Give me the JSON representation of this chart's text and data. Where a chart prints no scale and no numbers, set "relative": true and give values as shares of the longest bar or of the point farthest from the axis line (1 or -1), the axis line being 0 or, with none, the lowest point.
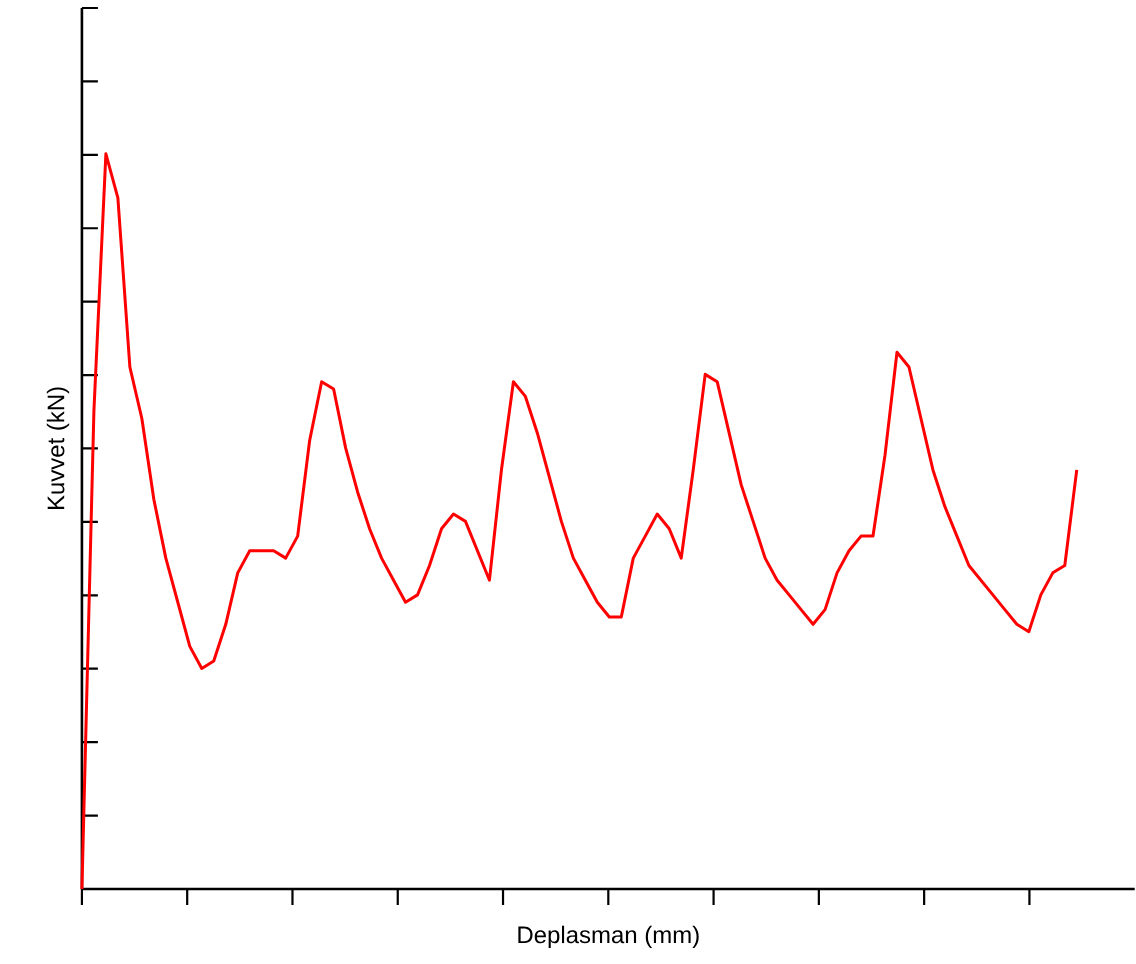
{
  "chart_data": {
    "type": "line",
    "relative": true,
    "xlabel": "Deplasman (mm)",
    "ylabel": "Kuvvet (kN)",
    "categories": [
      null,
      null,
      null,
      null,
      null,
      null,
      null,
      null,
      null,
      null,
      null,
      null,
      null,
      null,
      null,
      null,
      null,
      null,
      null,
      null,
      null,
      null,
      null,
      null,
      null,
      null,
      null,
      null,
      null,
      null,
      null,
      null,
      null,
      null,
      null,
      null,
      null,
      null,
      null,
      null,
      null,
      null,
      null,
      null,
      null,
      null,
      null,
      null,
      null,
      null,
      null,
      null,
      null,
      null,
      null,
      null,
      null,
      null,
      null,
      null,
      null,
      null,
      null,
      null,
      null,
      null,
      null,
      null,
      null,
      null,
      null,
      null,
      null,
      null,
      null,
      null,
      null,
      null,
      null,
      null,
      null,
      null,
      null,
      null
    ],
    "series": [
      {
        "color": "#ff0000",
        "values": [
          0,
          0.65,
          1.0,
          0.94,
          0.71,
          0.64,
          0.53,
          0.45,
          0.39,
          0.33,
          0.3,
          0.31,
          0.36,
          0.43,
          0.46,
          0.46,
          0.46,
          0.45,
          0.48,
          0.61,
          0.69,
          0.68,
          0.6,
          0.54,
          0.49,
          0.45,
          0.42,
          0.39,
          0.4,
          0.44,
          0.49,
          0.51,
          0.5,
          0.46,
          0.42,
          0.57,
          0.69,
          0.67,
          0.62,
          0.56,
          0.5,
          0.45,
          0.42,
          0.39,
          0.37,
          0.37,
          0.45,
          0.48,
          0.51,
          0.49,
          0.45,
          0.57,
          0.7,
          0.69,
          0.62,
          0.55,
          0.5,
          0.45,
          0.42,
          0.4,
          0.38,
          0.36,
          0.38,
          0.43,
          0.46,
          0.48,
          0.48,
          0.59,
          0.73,
          0.71,
          0.64,
          0.57,
          0.52,
          0.48,
          0.44,
          0.42,
          0.4,
          0.38,
          0.36,
          0.35,
          0.4,
          0.43,
          0.44,
          0.57
        ]
      }
    ],
    "grid": false,
    "marker": "none",
    "line_style": "solid"
  }
}
